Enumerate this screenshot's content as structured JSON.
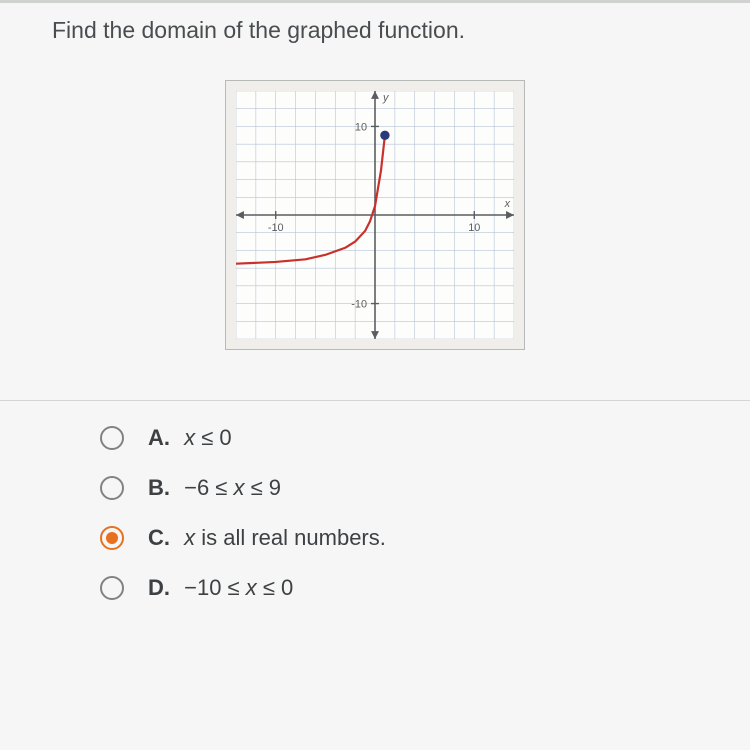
{
  "question": "Find the domain of the graphed function.",
  "chart": {
    "type": "line",
    "xlim": [
      -14,
      14
    ],
    "ylim": [
      -14,
      14
    ],
    "grid_step": 2,
    "xticks": [
      {
        "v": -10,
        "lbl": "-10"
      },
      {
        "v": 10,
        "lbl": "10"
      }
    ],
    "yticks": [
      {
        "v": 10,
        "lbl": "10"
      },
      {
        "v": -10,
        "lbl": "-10"
      }
    ],
    "grid_color": "#b8c4d8",
    "axis_color": "#5a5d60",
    "background_color": "#fdfdfb",
    "curve": {
      "color": "#c9302c",
      "width": 2.2,
      "points": [
        [
          -14,
          -5.5
        ],
        [
          -10,
          -5.3
        ],
        [
          -7,
          -5.0
        ],
        [
          -5,
          -4.5
        ],
        [
          -3,
          -3.7
        ],
        [
          -2,
          -3.0
        ],
        [
          -1,
          -1.8
        ],
        [
          -0.5,
          -0.7
        ],
        [
          0,
          1
        ],
        [
          0.3,
          3
        ],
        [
          0.6,
          5
        ],
        [
          0.8,
          7
        ],
        [
          0.9,
          8
        ],
        [
          1,
          9
        ]
      ],
      "endpoint": {
        "x": 1,
        "y": 9,
        "filled": true,
        "color": "#2a3a7a",
        "radius": 4
      }
    },
    "x_axis_label": "x",
    "y_axis_label": "y"
  },
  "options": [
    {
      "key": "A.",
      "text_html": "<span class='math'>x</span> ≤ 0",
      "selected": false
    },
    {
      "key": "B.",
      "text_html": "−6 ≤ <span class='math'>x</span> ≤ 9",
      "selected": false
    },
    {
      "key": "C.",
      "text_html": "<span class='math'>x</span> is all real numbers.",
      "selected": true
    },
    {
      "key": "D.",
      "text_html": "−10 ≤ <span class='math'>x</span> ≤ 0",
      "selected": false
    }
  ],
  "colors": {
    "page_bg": "#f5f6f5",
    "text": "#3e4144",
    "radio_border": "#808284",
    "radio_selected": "#e8701f"
  }
}
